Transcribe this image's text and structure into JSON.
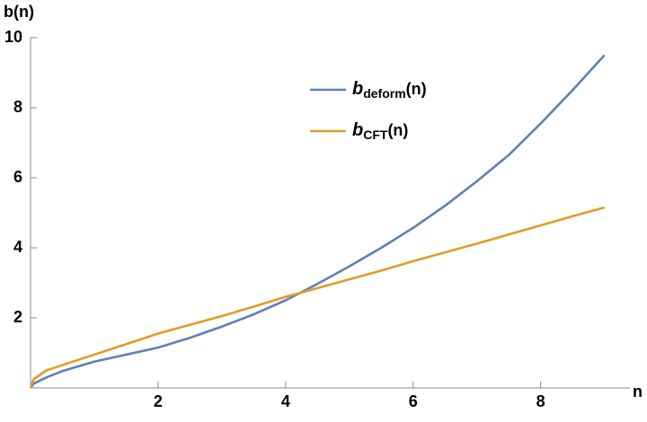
{
  "chart_data": {
    "type": "line",
    "y_label": "b(n)",
    "x_label": "n",
    "x": [
      0,
      0.05,
      0.25,
      0.5,
      1,
      1.5,
      2,
      2.5,
      3,
      3.5,
      4,
      4.5,
      5,
      5.5,
      6,
      6.5,
      7,
      7.5,
      8,
      8.5,
      9
    ],
    "series": [
      {
        "name": "b",
        "name_sub": "deform",
        "name_args": "(n)",
        "color": "#5e81b5",
        "values": [
          0,
          0.12,
          0.3,
          0.48,
          0.75,
          0.95,
          1.15,
          1.43,
          1.75,
          2.1,
          2.5,
          2.97,
          3.47,
          4.0,
          4.57,
          5.2,
          5.9,
          6.65,
          7.55,
          8.5,
          9.5
        ]
      },
      {
        "name": "b",
        "name_sub": "CFT",
        "name_args": "(n)",
        "color": "#e19c24",
        "values": [
          0,
          0.25,
          0.5,
          0.65,
          0.95,
          1.25,
          1.55,
          1.8,
          2.05,
          2.32,
          2.6,
          2.85,
          3.1,
          3.35,
          3.62,
          3.87,
          4.12,
          4.38,
          4.64,
          4.9,
          5.15
        ]
      }
    ],
    "xlim": [
      0,
      9.4
    ],
    "ylim": [
      0,
      10
    ],
    "xticks": [
      2,
      4,
      6,
      8
    ],
    "yticks": [
      2,
      4,
      6,
      8,
      10
    ]
  }
}
